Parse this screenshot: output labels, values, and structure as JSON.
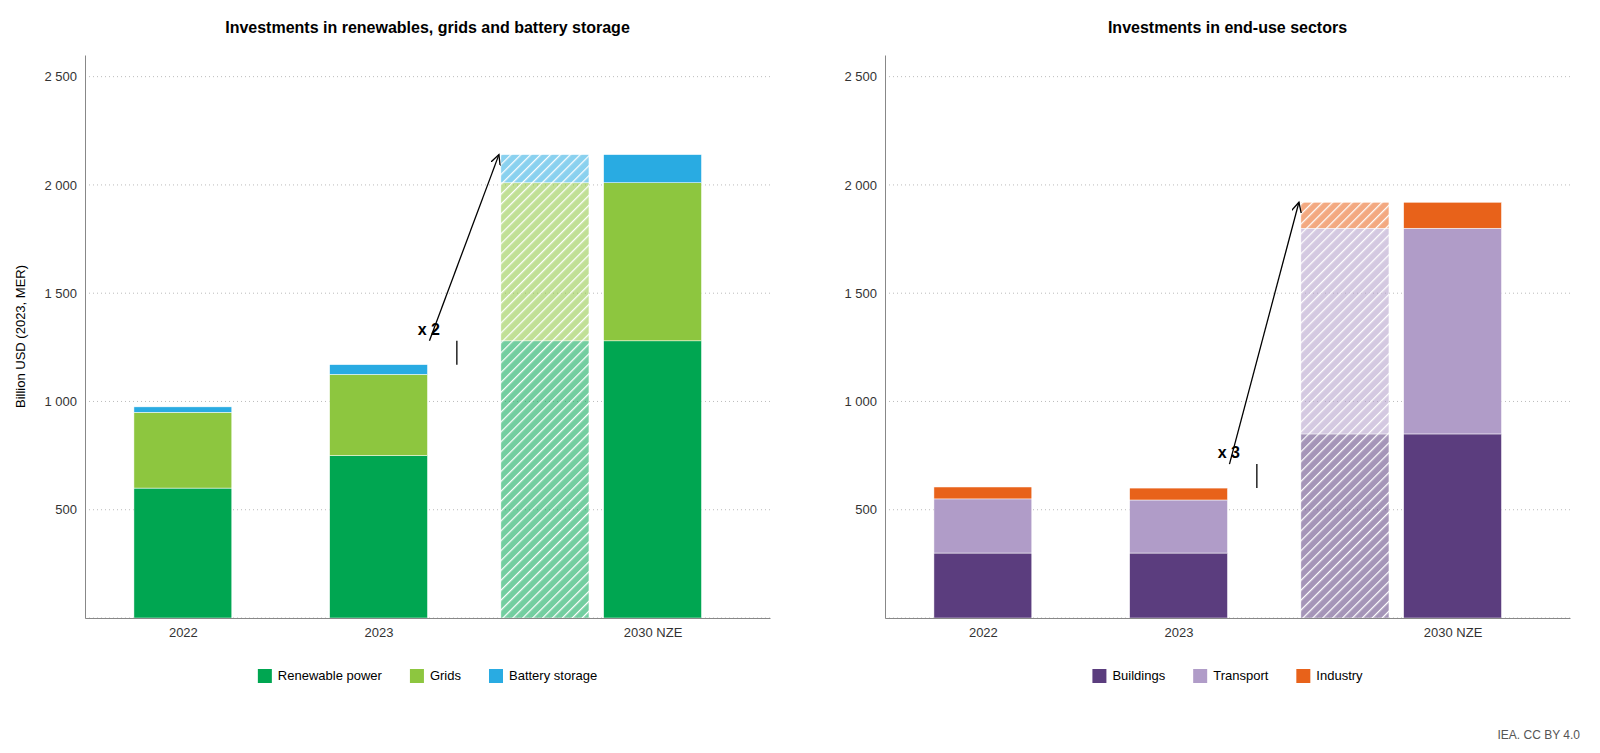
{
  "chart_data": [
    {
      "type": "bar",
      "stacked": true,
      "title": "Investments in renewables, grids and battery storage",
      "ylabel": "Billion USD (2023, MER)",
      "categories": [
        "2022",
        "2023",
        "2030 NZE"
      ],
      "series": [
        {
          "name": "Renewable power",
          "color": "#00a651",
          "values": [
            600,
            750,
            1280
          ]
        },
        {
          "name": "Grids",
          "color": "#8dc63f",
          "values": [
            350,
            375,
            730
          ]
        },
        {
          "name": "Battery storage",
          "color": "#29abe2",
          "values": [
            25,
            45,
            130
          ]
        }
      ],
      "ylim": [
        0,
        2600
      ],
      "yticks": [
        {
          "value": 0,
          "label": null
        },
        500,
        {
          "value": 1000,
          "label": "1 000"
        },
        {
          "value": 1500,
          "label": "1 500"
        },
        {
          "value": 2000,
          "label": "2 000"
        },
        {
          "value": 2500,
          "label": "2 500"
        }
      ],
      "grid": true,
      "legend": "bottom",
      "annotations": [
        "x 2"
      ]
    },
    {
      "type": "bar",
      "stacked": true,
      "title": "Investments in end-use sectors",
      "categories": [
        "2022",
        "2023",
        "2030 NZE"
      ],
      "series": [
        {
          "name": "Buildings",
          "color": "#5b3d7e",
          "values": [
            300,
            300,
            850
          ]
        },
        {
          "name": "Transport",
          "color": "#b09cc8",
          "values": [
            250,
            245,
            950
          ]
        },
        {
          "name": "Industry",
          "color": "#e8621a",
          "values": [
            55,
            55,
            120
          ]
        }
      ],
      "ylim": [
        0,
        2600
      ],
      "yticks": [
        {
          "value": 0,
          "label": null
        },
        500,
        {
          "value": 1000,
          "label": "1 000"
        },
        {
          "value": 1500,
          "label": "1 500"
        },
        {
          "value": 2000,
          "label": "2 000"
        },
        {
          "value": 2500,
          "label": "2 500"
        }
      ],
      "grid": true,
      "legend": "bottom",
      "annotations": [
        "x 3",
        "IEA. CC BY 4.0"
      ]
    }
  ]
}
